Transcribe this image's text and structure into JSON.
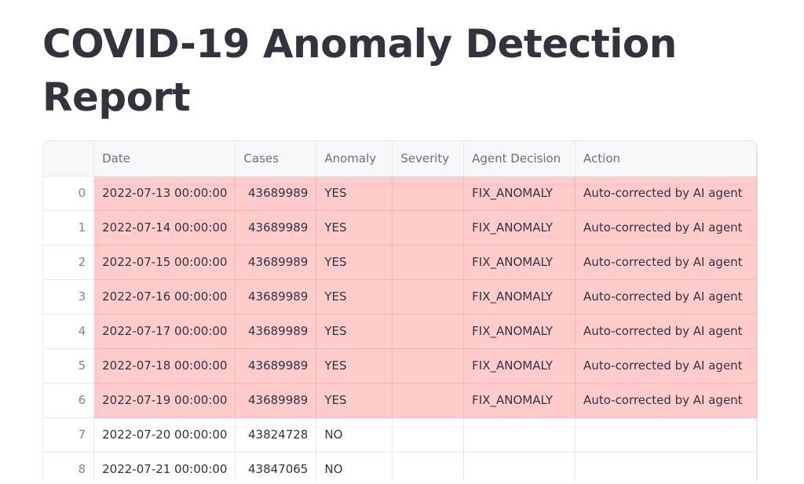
{
  "title": "COVID-19 Anomaly Detection Report",
  "highlight_color": "#ffcbcb",
  "table": {
    "columns": [
      "",
      "Date",
      "Cases",
      "Anomaly",
      "Severity",
      "Agent Decision",
      "Action"
    ],
    "rows": [
      {
        "index": "0",
        "date": "2022-07-13 00:00:00",
        "cases": "43689989",
        "anomaly": "YES",
        "severity": "",
        "decision": "FIX_ANOMALY",
        "action": "Auto-corrected by AI agent",
        "highlighted": true
      },
      {
        "index": "1",
        "date": "2022-07-14 00:00:00",
        "cases": "43689989",
        "anomaly": "YES",
        "severity": "",
        "decision": "FIX_ANOMALY",
        "action": "Auto-corrected by AI agent",
        "highlighted": true
      },
      {
        "index": "2",
        "date": "2022-07-15 00:00:00",
        "cases": "43689989",
        "anomaly": "YES",
        "severity": "",
        "decision": "FIX_ANOMALY",
        "action": "Auto-corrected by AI agent",
        "highlighted": true
      },
      {
        "index": "3",
        "date": "2022-07-16 00:00:00",
        "cases": "43689989",
        "anomaly": "YES",
        "severity": "",
        "decision": "FIX_ANOMALY",
        "action": "Auto-corrected by AI agent",
        "highlighted": true
      },
      {
        "index": "4",
        "date": "2022-07-17 00:00:00",
        "cases": "43689989",
        "anomaly": "YES",
        "severity": "",
        "decision": "FIX_ANOMALY",
        "action": "Auto-corrected by AI agent",
        "highlighted": true
      },
      {
        "index": "5",
        "date": "2022-07-18 00:00:00",
        "cases": "43689989",
        "anomaly": "YES",
        "severity": "",
        "decision": "FIX_ANOMALY",
        "action": "Auto-corrected by AI agent",
        "highlighted": true
      },
      {
        "index": "6",
        "date": "2022-07-19 00:00:00",
        "cases": "43689989",
        "anomaly": "YES",
        "severity": "",
        "decision": "FIX_ANOMALY",
        "action": "Auto-corrected by AI agent",
        "highlighted": true
      },
      {
        "index": "7",
        "date": "2022-07-20 00:00:00",
        "cases": "43824728",
        "anomaly": "NO",
        "severity": "",
        "decision": "",
        "action": "",
        "highlighted": false
      },
      {
        "index": "8",
        "date": "2022-07-21 00:00:00",
        "cases": "43847065",
        "anomaly": "NO",
        "severity": "",
        "decision": "",
        "action": "",
        "highlighted": false
      }
    ]
  }
}
